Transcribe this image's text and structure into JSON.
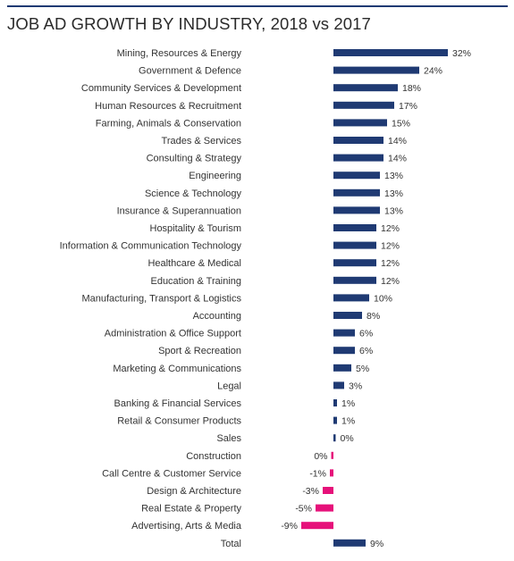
{
  "title": "JOB AD GROWTH BY INDUSTRY, 2018 vs 2017",
  "colors": {
    "positive": "#1f3a73",
    "negative": "#e6117a",
    "rule": "#1f3a73"
  },
  "chart_data": {
    "type": "bar",
    "orientation": "horizontal",
    "title": "JOB AD GROWTH BY INDUSTRY, 2018 vs 2017",
    "xlabel": "",
    "ylabel": "",
    "unit": "%",
    "grid": false,
    "categories": [
      "Mining, Resources & Energy",
      "Government & Defence",
      "Community Services & Development",
      "Human Resources & Recruitment",
      "Farming, Animals & Conservation",
      "Trades & Services",
      "Consulting & Strategy",
      "Engineering",
      "Science & Technology",
      "Insurance & Superannuation",
      "Hospitality & Tourism",
      "Information & Communication Technology",
      "Healthcare & Medical",
      "Education & Training",
      "Manufacturing, Transport & Logistics",
      "Accounting",
      "Administration & Office Support",
      "Sport & Recreation",
      "Marketing & Communications",
      "Legal",
      "Banking & Financial Services",
      "Retail & Consumer Products",
      "Sales",
      "Construction",
      "Call Centre & Customer Service",
      "Design & Architecture",
      "Real Estate & Property",
      "Advertising, Arts & Media",
      "Total"
    ],
    "values": [
      32,
      24,
      18,
      17,
      15,
      14,
      14,
      13,
      13,
      13,
      12,
      12,
      12,
      12,
      10,
      8,
      6,
      6,
      5,
      3,
      1,
      1,
      0.3,
      -0.3,
      -1,
      -3,
      -5,
      -9,
      9
    ],
    "labels": [
      "32%",
      "24%",
      "18%",
      "17%",
      "15%",
      "14%",
      "14%",
      "13%",
      "13%",
      "13%",
      "12%",
      "12%",
      "12%",
      "12%",
      "10%",
      "8%",
      "6%",
      "6%",
      "5%",
      "3%",
      "1%",
      "1%",
      "0%",
      "0%",
      "-1%",
      "-3%",
      "-5%",
      "-9%",
      "9%"
    ]
  }
}
